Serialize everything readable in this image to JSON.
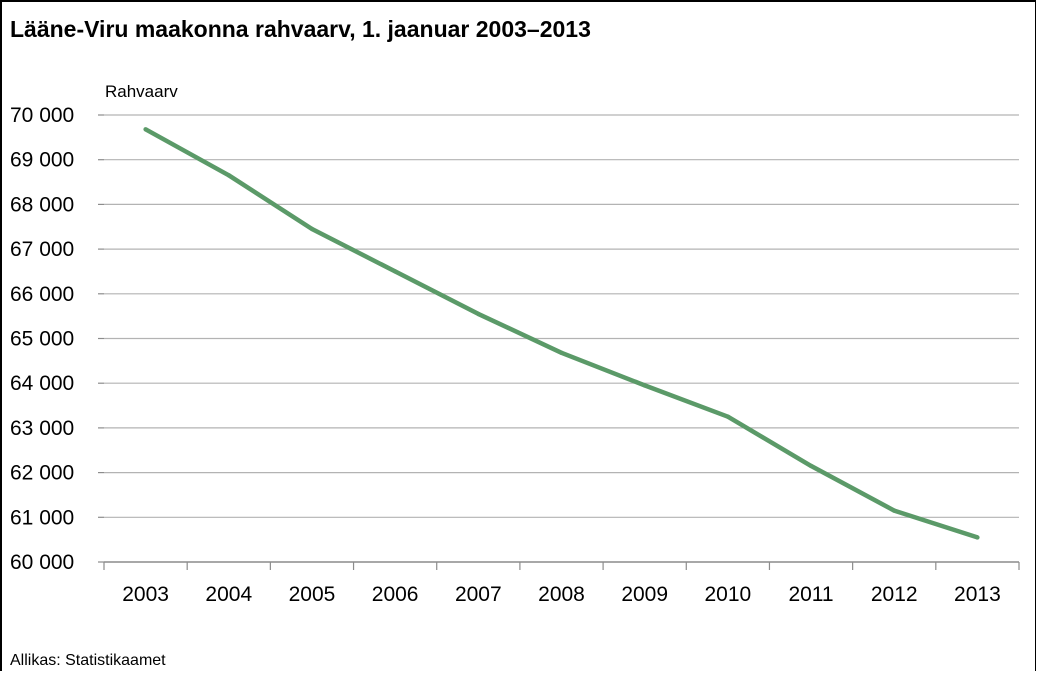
{
  "chart_data": {
    "type": "line",
    "title": "Lääne-Viru maakonna rahvaarv, 1. jaanuar 2003–2013",
    "ylabel": "Rahvaarv",
    "xlabel": "",
    "categories": [
      "2003",
      "2004",
      "2005",
      "2006",
      "2007",
      "2008",
      "2009",
      "2010",
      "2011",
      "2012",
      "2013"
    ],
    "series": [
      {
        "values": [
          69680,
          68650,
          67450,
          66500,
          65550,
          64680,
          63950,
          63250,
          62150,
          61150,
          60550
        ]
      }
    ],
    "ylim": [
      60000,
      70000
    ],
    "yticks": [
      70000,
      69000,
      68000,
      67000,
      66000,
      65000,
      64000,
      63000,
      62000,
      61000,
      60000
    ],
    "ytick_labels": [
      "70 000",
      "69 000",
      "68 000",
      "67 000",
      "66 000",
      "65 000",
      "64 000",
      "63 000",
      "62 000",
      "61 000",
      "60 000"
    ],
    "grid": true,
    "legend": "none",
    "line_color": "#5b9a68",
    "grid_color": "#b3b3b3",
    "source": "Allikas: Statistikaamet"
  }
}
